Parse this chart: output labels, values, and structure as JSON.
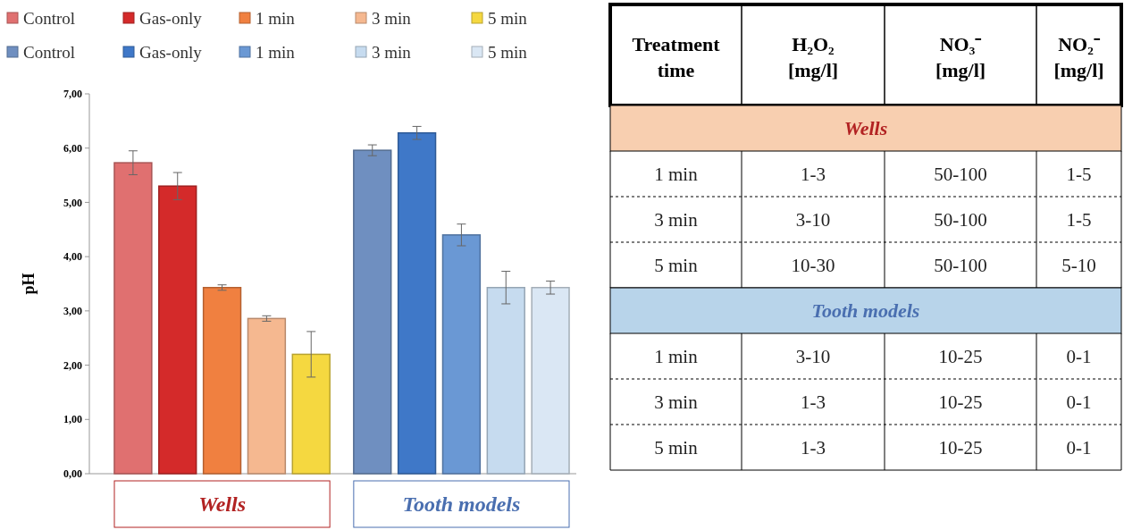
{
  "chart_data": [
    {
      "type": "bar",
      "ylabel": "pH",
      "categories": [
        "Wells",
        "Tooth models"
      ],
      "series": [
        {
          "name": "Control",
          "color": "#e07070",
          "values": [
            5.73,
            null
          ],
          "errors": [
            0.22,
            null
          ]
        },
        {
          "name": "Gas-only",
          "color": "#d42a2a",
          "values": [
            5.3,
            null
          ],
          "errors": [
            0.25,
            null
          ]
        },
        {
          "name": "1 min",
          "color": "#f08040",
          "values": [
            3.43,
            null
          ],
          "errors": [
            0.05,
            null
          ]
        },
        {
          "name": "3 min",
          "color": "#f5b890",
          "values": [
            2.86,
            null
          ],
          "errors": [
            0.05,
            null
          ]
        },
        {
          "name": "5 min",
          "color": "#f5d840",
          "values": [
            2.2,
            null
          ],
          "errors": [
            0.42,
            null
          ]
        },
        {
          "name": "Control",
          "color": "#6f8fc0",
          "values": [
            null,
            5.96
          ],
          "errors": [
            null,
            0.1
          ]
        },
        {
          "name": "Gas-only",
          "color": "#3f78c8",
          "values": [
            null,
            6.28
          ],
          "errors": [
            null,
            0.12
          ]
        },
        {
          "name": "1 min",
          "color": "#6a98d4",
          "values": [
            null,
            4.4
          ],
          "errors": [
            null,
            0.2
          ]
        },
        {
          "name": "3 min",
          "color": "#c6dbef",
          "values": [
            null,
            3.43
          ],
          "errors": [
            null,
            0.3
          ]
        },
        {
          "name": "5 min",
          "color": "#dae7f4",
          "values": [
            null,
            3.43
          ],
          "errors": [
            null,
            0.12
          ]
        }
      ],
      "ylim": [
        0,
        7
      ],
      "yticks": [
        {
          "value": 0,
          "label": "0,00"
        },
        {
          "value": 1,
          "label": "1,00"
        },
        {
          "value": 2,
          "label": "2,00"
        },
        {
          "value": 3,
          "label": "3,00"
        },
        {
          "value": 4,
          "label": "4,00"
        },
        {
          "value": 5,
          "label": "5,00"
        },
        {
          "value": 6,
          "label": "6,00"
        },
        {
          "value": 7,
          "label": "7,00"
        }
      ],
      "grid": false,
      "legend": "top"
    },
    {
      "type": "other",
      "categories": [
        "Treatment time",
        "H₂O₂ [mg/l]",
        "NO₃⁻ [mg/l]",
        "NO₂⁻ [mg/l]"
      ],
      "annotations": [
        "Wells",
        "Tooth models"
      ],
      "cell_labels": [
        [
          "1 min",
          "1-3",
          "50-100",
          "1-5"
        ],
        [
          "3 min",
          "3-10",
          "50-100",
          "1-5"
        ],
        [
          "5 min",
          "10-30",
          "50-100",
          "5-10"
        ],
        [
          "1 min",
          "3-10",
          "10-25",
          "0-1"
        ],
        [
          "3 min",
          "1-3",
          "10-25",
          "0-1"
        ],
        [
          "5 min",
          "1-3",
          "10-25",
          "0-1"
        ]
      ]
    }
  ]
}
